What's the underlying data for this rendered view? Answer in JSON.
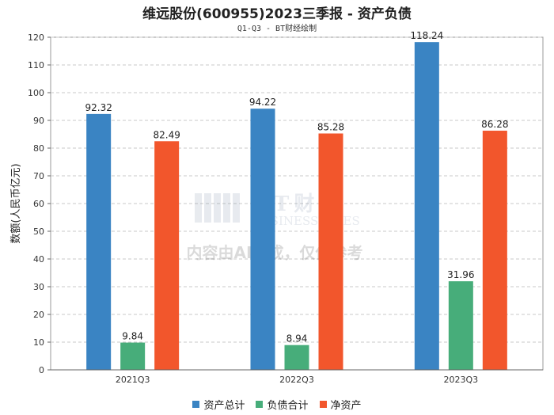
{
  "chart_data": {
    "type": "bar",
    "title": "维远股份(600955)2023三季报 - 资产负债",
    "subtitle": "Q1-Q3 - BT财经绘制",
    "ylabel": "数额(人民币亿元)",
    "xlabel": "",
    "ylim": [
      0,
      120
    ],
    "yticks": [
      0,
      10,
      20,
      30,
      40,
      50,
      60,
      70,
      80,
      90,
      100,
      110,
      120
    ],
    "categories": [
      "2021Q3",
      "2022Q3",
      "2023Q3"
    ],
    "series": [
      {
        "name": "资产总计",
        "color": "#3a84c3",
        "values": [
          92.32,
          94.22,
          118.24
        ]
      },
      {
        "name": "负债合计",
        "color": "#47ad7a",
        "values": [
          9.84,
          8.94,
          31.96
        ]
      },
      {
        "name": "净资产",
        "color": "#f2562c",
        "values": [
          82.49,
          85.28,
          86.28
        ]
      }
    ],
    "grid": true,
    "legend_position": "bottom-center"
  },
  "watermark": {
    "brand_cn": "BT财经",
    "brand_en": "BUSINESSTIMES",
    "notice": "内容由AI生成，仅供参考"
  }
}
